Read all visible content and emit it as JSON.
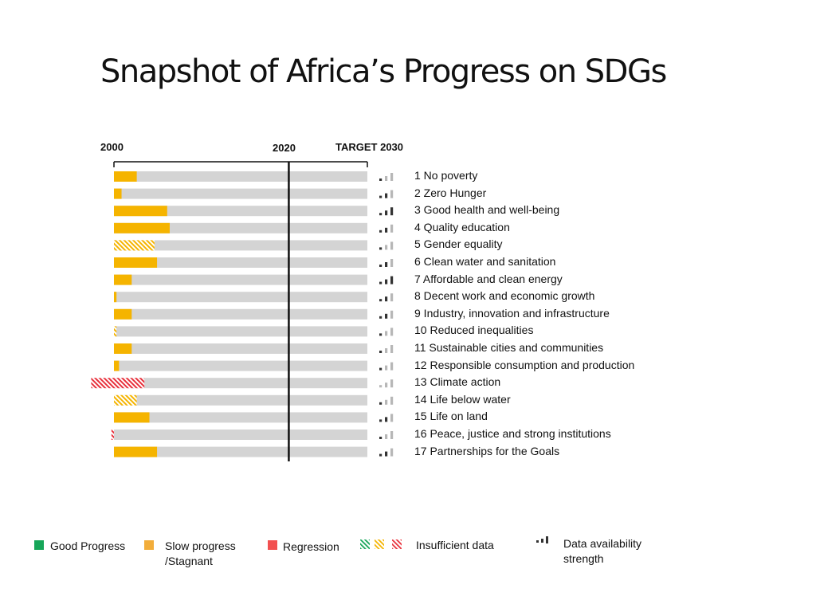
{
  "chart_data": {
    "type": "bar",
    "title": "Snapshot of Africa’s Progress on SDGs",
    "axis_labels": {
      "start": "2000",
      "mid": "2020",
      "end": "TARGET 2030"
    },
    "goals": [
      {
        "label": "1 No poverty",
        "value": 9,
        "status": "slow",
        "insufficient": false,
        "data_strength": 1
      },
      {
        "label": "2 Zero Hunger",
        "value": 3,
        "status": "slow",
        "insufficient": false,
        "data_strength": 2
      },
      {
        "label": "3 Good health and well-being",
        "value": 21,
        "status": "slow",
        "insufficient": false,
        "data_strength": 3
      },
      {
        "label": "4 Quality education",
        "value": 22,
        "status": "slow",
        "insufficient": false,
        "data_strength": 2
      },
      {
        "label": "5 Gender equality",
        "value": 16,
        "status": "slow",
        "insufficient": true,
        "data_strength": 1
      },
      {
        "label": "6 Clean water and sanitation",
        "value": 17,
        "status": "slow",
        "insufficient": false,
        "data_strength": 2
      },
      {
        "label": "7 Affordable and clean energy",
        "value": 7,
        "status": "slow",
        "insufficient": false,
        "data_strength": 3
      },
      {
        "label": "8 Decent work and economic growth",
        "value": 1,
        "status": "slow",
        "insufficient": false,
        "data_strength": 2
      },
      {
        "label": "9 Industry, innovation and infrastructure",
        "value": 7,
        "status": "slow",
        "insufficient": false,
        "data_strength": 2
      },
      {
        "label": "10 Reduced inequalities",
        "value": 1,
        "status": "slow",
        "insufficient": true,
        "data_strength": 1
      },
      {
        "label": "11 Sustainable cities and communities",
        "value": 7,
        "status": "slow",
        "insufficient": false,
        "data_strength": 1
      },
      {
        "label": "12 Responsible consumption and production",
        "value": 2,
        "status": "slow",
        "insufficient": false,
        "data_strength": 1
      },
      {
        "label": "13 Climate action",
        "value": -9,
        "value_end": 12,
        "status": "regression",
        "insufficient": true,
        "data_strength": 0
      },
      {
        "label": "14 Life below water",
        "value": 9,
        "status": "slow",
        "insufficient": true,
        "data_strength": 1
      },
      {
        "label": "15 Life on land",
        "value": 14,
        "status": "slow",
        "insufficient": false,
        "data_strength": 2
      },
      {
        "label": "16 Peace, justice and strong institutions",
        "value": -1,
        "status": "regression",
        "insufficient": true,
        "data_strength": 1
      },
      {
        "label": "17 Partnerships for the Goals",
        "value": 17,
        "status": "slow",
        "insufficient": false,
        "data_strength": 2
      }
    ],
    "xlim": [
      0,
      100
    ],
    "marker_2020": 69
  },
  "colors": {
    "good": "#16a659",
    "slow": "#f5b400",
    "slow_legend": "#f2ad3a",
    "regression": "#e8313c",
    "regression_legend": "#f25050",
    "track": "#d4d4d4",
    "bars_dark": "#333333",
    "bars_light": "#b7b7b7"
  },
  "legend": {
    "good": "Good Progress",
    "slow_line1": "Slow progress",
    "slow_line2": "/Stagnant",
    "regression": "Regression",
    "insufficient": "Insufficient data",
    "availability_line1": "Data availability",
    "availability_line2": "strength"
  }
}
